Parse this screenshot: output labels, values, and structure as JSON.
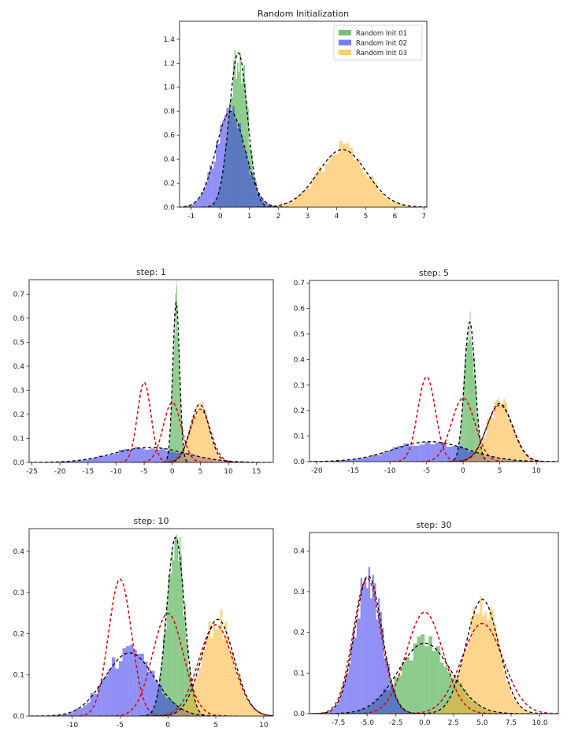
{
  "figure": {
    "colors": {
      "green": "#2ca02c",
      "blue": "#3333ee",
      "orange": "#ffb030",
      "fit": "#000000",
      "true": "#dd0000"
    },
    "true_components": [
      {
        "mu": -5,
        "sigma": 1.2
      },
      {
        "mu": 0,
        "sigma": 1.6
      },
      {
        "mu": 5,
        "sigma": 1.8
      }
    ]
  },
  "chart_data": [
    {
      "type": "histogram",
      "title": "Random Initialization",
      "xlim": [
        -1.4,
        7.1
      ],
      "ylim": [
        0,
        1.55
      ],
      "xticks": [
        -1,
        0,
        1,
        2,
        3,
        4,
        5,
        6,
        7
      ],
      "yticks": [
        0.0,
        0.2,
        0.4,
        0.6,
        0.8,
        1.0,
        1.2,
        1.4
      ],
      "xtick_labels": [
        "-1",
        "0",
        "1",
        "2",
        "3",
        "4",
        "5",
        "6",
        "7"
      ],
      "ytick_labels": [
        "0.0",
        "0.2",
        "0.4",
        "0.6",
        "0.8",
        "1.0",
        "1.2",
        "1.4"
      ],
      "legend": {
        "placement": "top-right",
        "entries": [
          "Random Init 01",
          "Random Init 02",
          "Random Init 03"
        ]
      },
      "show_true": false,
      "series": [
        {
          "name": "Random Init 01",
          "color": "green",
          "mu": 0.62,
          "sigma": 0.31,
          "weight": 1.0
        },
        {
          "name": "Random Init 02",
          "color": "blue",
          "mu": 0.35,
          "sigma": 0.5,
          "weight": 1.0
        },
        {
          "name": "Random Init 03",
          "color": "orange",
          "mu": 4.2,
          "sigma": 0.83,
          "weight": 1.0
        }
      ]
    },
    {
      "type": "histogram",
      "title": "step: 1",
      "xlim": [
        -25.5,
        18
      ],
      "ylim": [
        0,
        0.76
      ],
      "xticks": [
        -25,
        -20,
        -15,
        -10,
        -5,
        0,
        5,
        10,
        15
      ],
      "yticks": [
        0.0,
        0.1,
        0.2,
        0.3,
        0.4,
        0.5,
        0.6,
        0.7
      ],
      "xtick_labels": [
        "-25",
        "-20",
        "-15",
        "-10",
        "-5",
        "0",
        "5",
        "10",
        "15"
      ],
      "ytick_labels": [
        "0.0",
        "0.1",
        "0.2",
        "0.3",
        "0.4",
        "0.5",
        "0.6",
        "0.7"
      ],
      "show_true": true,
      "series": [
        {
          "color": "green",
          "mu": 0.7,
          "sigma": 0.6,
          "weight": 1.0
        },
        {
          "color": "blue",
          "mu": -4,
          "sigma": 6.4,
          "weight": 1.0
        },
        {
          "color": "orange",
          "mu": 4.9,
          "sigma": 1.65,
          "weight": 1.0
        }
      ]
    },
    {
      "type": "histogram",
      "title": "step: 5",
      "xlim": [
        -21,
        13
      ],
      "ylim": [
        0,
        0.71
      ],
      "xticks": [
        -20,
        -15,
        -10,
        -5,
        0,
        5,
        10
      ],
      "yticks": [
        0.0,
        0.1,
        0.2,
        0.3,
        0.4,
        0.5,
        0.6,
        0.7
      ],
      "xtick_labels": [
        "-20",
        "-15",
        "-10",
        "-5",
        "0",
        "5",
        "10"
      ],
      "ytick_labels": [
        "0.0",
        "0.1",
        "0.2",
        "0.3",
        "0.4",
        "0.5",
        "0.6",
        "0.7"
      ],
      "show_true": true,
      "series": [
        {
          "color": "green",
          "mu": 0.9,
          "sigma": 0.73,
          "weight": 1.0
        },
        {
          "color": "blue",
          "mu": -4.5,
          "sigma": 5.1,
          "weight": 1.0
        },
        {
          "color": "orange",
          "mu": 5.0,
          "sigma": 1.75,
          "weight": 1.0
        }
      ]
    },
    {
      "type": "histogram",
      "title": "step: 10",
      "xlim": [
        -14.5,
        11
      ],
      "ylim": [
        0,
        0.455
      ],
      "xticks": [
        -10,
        -5,
        0,
        5,
        10
      ],
      "yticks": [
        0.0,
        0.1,
        0.2,
        0.3,
        0.4
      ],
      "xtick_labels": [
        "-10",
        "-5",
        "0",
        "5",
        "10"
      ],
      "ytick_labels": [
        "0.0",
        "0.1",
        "0.2",
        "0.3",
        "0.4"
      ],
      "show_true": true,
      "series": [
        {
          "color": "green",
          "mu": 0.8,
          "sigma": 0.92,
          "weight": 1.0
        },
        {
          "color": "blue",
          "mu": -4.0,
          "sigma": 2.6,
          "weight": 1.0
        },
        {
          "color": "orange",
          "mu": 5.2,
          "sigma": 1.7,
          "weight": 1.0
        }
      ]
    },
    {
      "type": "histogram",
      "title": "step: 30",
      "xlim": [
        -10,
        11.6
      ],
      "ylim": [
        0,
        0.445
      ],
      "xticks": [
        -7.5,
        -5.0,
        -2.5,
        0.0,
        2.5,
        5.0,
        7.5,
        10.0
      ],
      "yticks": [
        0.0,
        0.1,
        0.2,
        0.3,
        0.4
      ],
      "xtick_labels": [
        "-7.5",
        "-5.0",
        "-2.5",
        "0.0",
        "2.5",
        "5.0",
        "7.5",
        "10.0"
      ],
      "ytick_labels": [
        "0.0",
        "0.1",
        "0.2",
        "0.3",
        "0.4"
      ],
      "show_true": true,
      "series": [
        {
          "color": "green",
          "mu": 0.0,
          "sigma": 2.3,
          "weight": 1.0
        },
        {
          "color": "blue",
          "mu": -4.9,
          "sigma": 1.18,
          "weight": 1.0
        },
        {
          "color": "orange",
          "mu": 5.0,
          "sigma": 1.42,
          "weight": 1.0
        }
      ]
    }
  ]
}
